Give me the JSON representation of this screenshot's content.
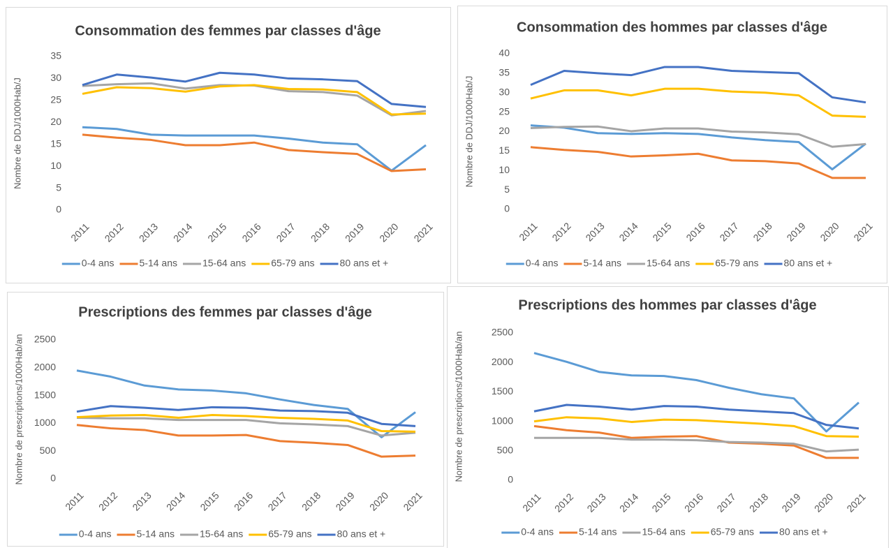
{
  "chart_data": [
    {
      "type": "line",
      "title": "Consommation des femmes par classes d'âge",
      "y_label": "Nombre de DDJ/1000Hab/J",
      "categories": [
        "2011",
        "2012",
        "2013",
        "2014",
        "2015",
        "2016",
        "2017",
        "2018",
        "2019",
        "2020",
        "2021"
      ],
      "ylim": [
        0,
        35
      ],
      "yticks": [
        0,
        5,
        10,
        15,
        20,
        25,
        30,
        35
      ],
      "grid": false,
      "legend": "bottom",
      "series": [
        {
          "name": "0-4 ans",
          "color": "#5b9bd5",
          "values": [
            18.9,
            18.5,
            17.2,
            17.0,
            17.0,
            17.0,
            16.3,
            15.4,
            15.0,
            9.0,
            14.8
          ]
        },
        {
          "name": "5-14 ans",
          "color": "#ed7d31",
          "values": [
            17.2,
            16.5,
            16.0,
            14.8,
            14.8,
            15.4,
            13.7,
            13.2,
            12.8,
            8.9,
            9.3
          ]
        },
        {
          "name": "15-64 ans",
          "color": "#a5a5a5",
          "values": [
            28.3,
            28.7,
            28.9,
            27.7,
            28.5,
            28.4,
            27.1,
            26.9,
            26.1,
            21.6,
            22.6
          ]
        },
        {
          "name": "65-79 ans",
          "color": "#ffc000",
          "values": [
            26.5,
            28.0,
            27.8,
            27.0,
            28.2,
            28.5,
            27.6,
            27.5,
            26.9,
            21.8,
            22.0
          ]
        },
        {
          "name": "80 ans et +",
          "color": "#4472c4",
          "values": [
            28.5,
            30.9,
            30.2,
            29.3,
            31.3,
            30.9,
            30.0,
            29.8,
            29.4,
            24.2,
            23.5
          ]
        }
      ]
    },
    {
      "type": "line",
      "title": "Consommation des hommes par classes d'âge",
      "y_label": "Nombre de DDJ/1000Hab/J",
      "categories": [
        "2011",
        "2012",
        "2013",
        "2014",
        "2015",
        "2016",
        "2017",
        "2018",
        "2019",
        "2020",
        "2021"
      ],
      "ylim": [
        0,
        40
      ],
      "yticks": [
        0,
        5,
        10,
        15,
        20,
        25,
        30,
        35,
        40
      ],
      "grid": false,
      "legend": "bottom",
      "series": [
        {
          "name": "0-4 ans",
          "color": "#5b9bd5",
          "values": [
            21.6,
            21.0,
            19.6,
            19.4,
            19.6,
            19.4,
            18.5,
            17.8,
            17.3,
            10.3,
            16.9
          ]
        },
        {
          "name": "5-14 ans",
          "color": "#ed7d31",
          "values": [
            16.0,
            15.3,
            14.8,
            13.6,
            13.9,
            14.3,
            12.6,
            12.4,
            11.8,
            8.1,
            8.1
          ]
        },
        {
          "name": "15-64 ans",
          "color": "#a5a5a5",
          "values": [
            20.9,
            21.2,
            21.3,
            20.1,
            20.8,
            20.8,
            20.0,
            19.8,
            19.3,
            16.1,
            16.8
          ]
        },
        {
          "name": "65-79 ans",
          "color": "#ffc000",
          "values": [
            28.5,
            30.6,
            30.6,
            29.3,
            31.0,
            31.0,
            30.3,
            30.0,
            29.3,
            24.1,
            23.8
          ]
        },
        {
          "name": "80 ans et +",
          "color": "#4472c4",
          "values": [
            32.0,
            35.6,
            35.0,
            34.5,
            36.6,
            36.6,
            35.6,
            35.3,
            35.0,
            28.8,
            27.5
          ]
        }
      ]
    },
    {
      "type": "line",
      "title": "Prescriptions des femmes par classes d'âge",
      "y_label": "Nombre de prescriptions/1000Hab/an",
      "categories": [
        "2011",
        "2012",
        "2013",
        "2014",
        "2015",
        "2016",
        "2017",
        "2018",
        "2019",
        "2020",
        "2021"
      ],
      "ylim": [
        0,
        2500
      ],
      "yticks": [
        0,
        500,
        1000,
        1500,
        2000,
        2500
      ],
      "grid": false,
      "legend": "bottom",
      "series": [
        {
          "name": "0-4 ans",
          "color": "#5b9bd5",
          "values": [
            1950,
            1840,
            1680,
            1610,
            1590,
            1540,
            1430,
            1330,
            1260,
            750,
            1200
          ]
        },
        {
          "name": "5-14 ans",
          "color": "#ed7d31",
          "values": [
            970,
            910,
            880,
            780,
            780,
            790,
            680,
            650,
            610,
            400,
            420
          ]
        },
        {
          "name": "15-64 ans",
          "color": "#a5a5a5",
          "values": [
            1100,
            1090,
            1090,
            1060,
            1060,
            1060,
            1000,
            980,
            950,
            780,
            830
          ]
        },
        {
          "name": "65-79 ans",
          "color": "#ffc000",
          "values": [
            1110,
            1140,
            1150,
            1100,
            1150,
            1130,
            1100,
            1080,
            1050,
            860,
            850
          ]
        },
        {
          "name": "80 ans et +",
          "color": "#4472c4",
          "values": [
            1210,
            1310,
            1280,
            1240,
            1290,
            1280,
            1230,
            1220,
            1190,
            990,
            950
          ]
        }
      ]
    },
    {
      "type": "line",
      "title": "Prescriptions des hommes par classes d'âge",
      "y_label": "Nombre de prescriptions/1000Hab/an",
      "categories": [
        "2011",
        "2012",
        "2013",
        "2014",
        "2015",
        "2016",
        "2017",
        "2018",
        "2019",
        "2020",
        "2021"
      ],
      "ylim": [
        0,
        2500
      ],
      "yticks": [
        0,
        500,
        1000,
        1500,
        2000,
        2500
      ],
      "grid": false,
      "legend": "bottom",
      "series": [
        {
          "name": "0-4 ans",
          "color": "#5b9bd5",
          "values": [
            2160,
            2010,
            1840,
            1780,
            1770,
            1700,
            1570,
            1460,
            1390,
            830,
            1320
          ]
        },
        {
          "name": "5-14 ans",
          "color": "#ed7d31",
          "values": [
            920,
            850,
            810,
            720,
            740,
            750,
            640,
            620,
            590,
            380,
            380
          ]
        },
        {
          "name": "15-64 ans",
          "color": "#a5a5a5",
          "values": [
            720,
            720,
            720,
            690,
            690,
            680,
            650,
            640,
            620,
            490,
            520
          ]
        },
        {
          "name": "65-79 ans",
          "color": "#ffc000",
          "values": [
            1000,
            1070,
            1050,
            990,
            1030,
            1020,
            990,
            960,
            920,
            750,
            740
          ]
        },
        {
          "name": "80 ans et +",
          "color": "#4472c4",
          "values": [
            1170,
            1280,
            1250,
            1200,
            1260,
            1250,
            1200,
            1170,
            1140,
            940,
            880
          ]
        }
      ]
    }
  ]
}
